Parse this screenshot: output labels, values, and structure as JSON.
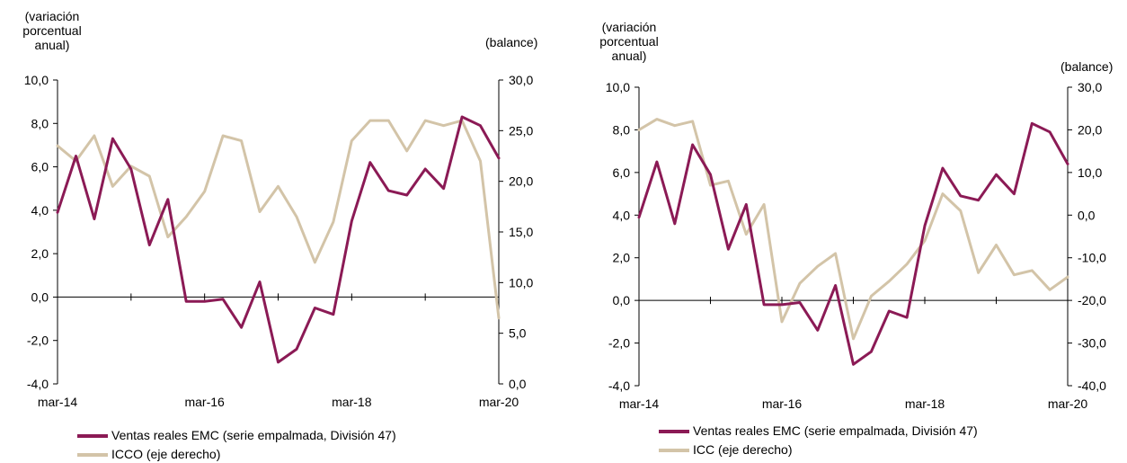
{
  "colors": {
    "series1": "#8b1a55",
    "series2": "#d3c4a8"
  },
  "chart_data": [
    {
      "type": "line",
      "ylabel_left_lines": [
        "(variación",
        "porcentual",
        "anual)"
      ],
      "ylabel_right": "(balance)",
      "ylim_left": [
        -4,
        10
      ],
      "ylim_right": [
        0,
        30
      ],
      "yticks_left": [
        "10,0",
        "8,0",
        "6,0",
        "4,0",
        "2,0",
        "0,0",
        "-2,0",
        "-4,0"
      ],
      "yticks_right": [
        "30,0",
        "25,0",
        "20,0",
        "15,0",
        "10,0",
        "5,0",
        "0,0"
      ],
      "xticks": [
        "mar-14",
        "mar-16",
        "mar-18",
        "mar-20"
      ],
      "x_periods": 25,
      "series": [
        {
          "name": "Ventas reales EMC (serie empalmada, División 47)",
          "axis": "left",
          "values": [
            3.9,
            6.5,
            3.6,
            7.3,
            5.9,
            2.4,
            4.5,
            -0.2,
            -0.2,
            -0.1,
            -1.4,
            0.7,
            -3.0,
            -2.4,
            -0.5,
            -0.8,
            3.5,
            6.2,
            4.9,
            4.7,
            5.9,
            5.0,
            8.3,
            7.9,
            6.4
          ]
        },
        {
          "name": "ICCO (eje derecho)",
          "axis": "right",
          "values": [
            23.5,
            22.0,
            24.5,
            19.5,
            21.5,
            20.5,
            14.5,
            16.5,
            19.0,
            24.5,
            24.0,
            17.0,
            19.5,
            16.5,
            12.0,
            16.0,
            24.0,
            26.0,
            26.0,
            23.0,
            26.0,
            25.5,
            26.0,
            22.0,
            6.5
          ]
        }
      ]
    },
    {
      "type": "line",
      "ylabel_left_lines": [
        "(variación",
        "porcentual",
        "anual)"
      ],
      "ylabel_right": "(balance)",
      "ylim_left": [
        -4,
        10
      ],
      "ylim_right": [
        -40,
        30
      ],
      "yticks_left": [
        "10,0",
        "8,0",
        "6,0",
        "4,0",
        "2,0",
        "0,0",
        "-2,0",
        "-4,0"
      ],
      "yticks_right": [
        "30,0",
        "20,0",
        "10,0",
        "0,0",
        "-10,0",
        "-20,0",
        "-30,0",
        "-40,0"
      ],
      "xticks": [
        "mar-14",
        "mar-16",
        "mar-18",
        "mar-20"
      ],
      "x_periods": 25,
      "series": [
        {
          "name": "Ventas reales EMC (serie empalmada, División 47)",
          "axis": "left",
          "values": [
            3.9,
            6.5,
            3.6,
            7.3,
            5.9,
            2.4,
            4.5,
            -0.2,
            -0.2,
            -0.1,
            -1.4,
            0.7,
            -3.0,
            -2.4,
            -0.5,
            -0.8,
            3.5,
            6.2,
            4.9,
            4.7,
            5.9,
            5.0,
            8.3,
            7.9,
            6.4
          ]
        },
        {
          "name": "ICC (eje derecho)",
          "axis": "right",
          "values": [
            20.0,
            22.5,
            21.0,
            22.0,
            7.0,
            8.0,
            -4.5,
            2.5,
            -25.0,
            -16.0,
            -12.0,
            -9.0,
            -29.0,
            -19.0,
            -15.5,
            -11.5,
            -6.0,
            5.0,
            1.0,
            -13.5,
            -7.0,
            -14.0,
            -13.0,
            -17.5,
            -14.5
          ]
        }
      ]
    }
  ]
}
